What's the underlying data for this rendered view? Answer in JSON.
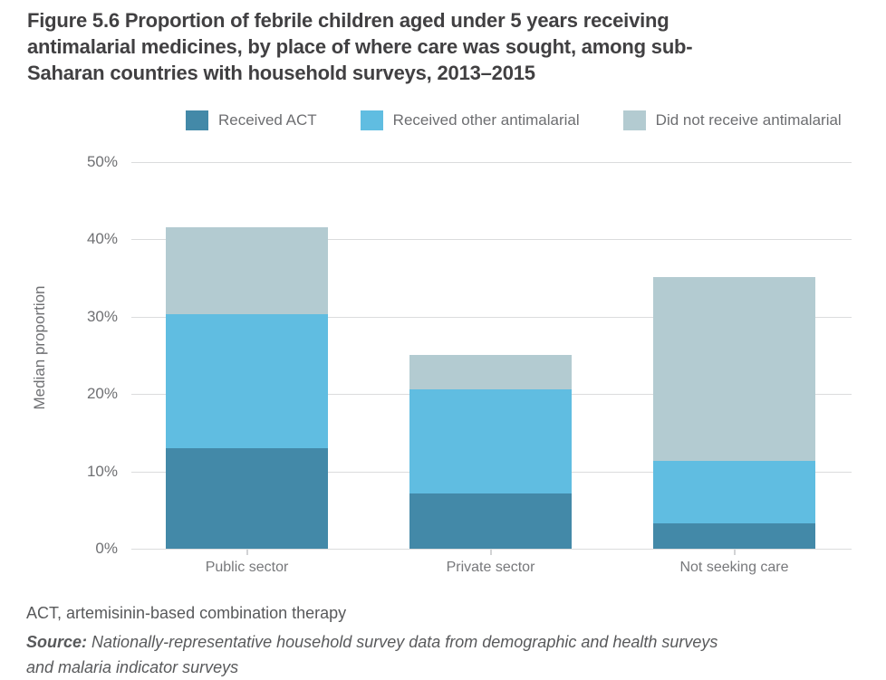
{
  "figure": {
    "title_lines": [
      "Figure 5.6 Proportion of febrile children aged under 5 years receiving",
      "antimalarial medicines, by place of where care was sought, among sub-",
      "Saharan countries with household surveys, 2013–2015"
    ]
  },
  "legend": [
    {
      "label": "Received ACT",
      "color": "#4389a8"
    },
    {
      "label": "Received other antimalarial",
      "color": "#60bde1"
    },
    {
      "label": "Did not receive antimalarial",
      "color": "#b3cbd1"
    }
  ],
  "chart_data": {
    "type": "bar",
    "stacked": true,
    "title": "Figure 5.6 Proportion of febrile children aged under 5 years receiving antimalarial medicines, by place of where care was sought, among sub-Saharan countries with household surveys, 2013–2015",
    "categories": [
      "Public sector",
      "Private sector",
      "Not seeking care"
    ],
    "series": [
      {
        "name": "Received ACT",
        "color": "#4389a8",
        "values": [
          13.0,
          7.2,
          3.3
        ]
      },
      {
        "name": "Received other antimalarial",
        "color": "#60bde1",
        "values": [
          17.3,
          13.4,
          8.1
        ]
      },
      {
        "name": "Did not receive antimalarial",
        "color": "#b3cbd1",
        "values": [
          11.3,
          4.5,
          23.7
        ]
      }
    ],
    "stack_totals": [
      41.6,
      25.1,
      35.1
    ],
    "xlabel": "",
    "ylabel": "Median proportion",
    "ylim": [
      0,
      50
    ],
    "y_tick_step": 10,
    "y_tick_labels": [
      "0%",
      "10%",
      "20%",
      "30%",
      "40%",
      "50%"
    ],
    "grid": true,
    "legend_position": "top"
  },
  "footnotes": {
    "act_note": "ACT, artemisinin-based combination therapy",
    "source_label": "Source:",
    "source_lines": [
      "Nationally-representative household survey data from demographic and health surveys",
      "and malaria indicator surveys"
    ]
  }
}
